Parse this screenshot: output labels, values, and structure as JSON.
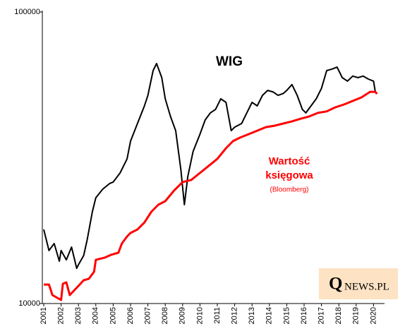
{
  "chart_data": {
    "type": "line",
    "log_y": true,
    "xlim": [
      2001,
      2020.5
    ],
    "xticks": [
      2001,
      2002,
      2003,
      2004,
      2005,
      2006,
      2007,
      2008,
      2009,
      2010,
      2011,
      2012,
      2013,
      2014,
      2015,
      2016,
      2017,
      2018,
      2019,
      2020
    ],
    "ylim": [
      10000,
      100000
    ],
    "yticks": [
      10000,
      100000
    ],
    "series": [
      {
        "name": "WIG",
        "color": "#000000",
        "x": [
          2001.0,
          2001.3,
          2001.6,
          2001.9,
          2002.0,
          2002.3,
          2002.6,
          2002.9,
          2003.0,
          2003.3,
          2003.5,
          2003.8,
          2004.0,
          2004.4,
          2004.8,
          2005.0,
          2005.4,
          2005.8,
          2006.0,
          2006.4,
          2006.8,
          2007.0,
          2007.3,
          2007.5,
          2007.8,
          2008.0,
          2008.3,
          2008.6,
          2008.9,
          2009.1,
          2009.3,
          2009.6,
          2010.0,
          2010.3,
          2010.6,
          2010.9,
          2011.2,
          2011.5,
          2011.8,
          2012.0,
          2012.4,
          2012.7,
          2013.0,
          2013.3,
          2013.6,
          2013.9,
          2014.2,
          2014.5,
          2014.8,
          2015.0,
          2015.3,
          2015.6,
          2015.9,
          2016.1,
          2016.4,
          2016.7,
          2017.0,
          2017.3,
          2017.6,
          2017.9,
          2018.2,
          2018.5,
          2018.8,
          2019.1,
          2019.4,
          2019.7,
          2020.0,
          2020.1
        ],
        "values": [
          17950,
          15200,
          16060,
          13970,
          15200,
          14120,
          15620,
          13210,
          13590,
          14610,
          16520,
          20640,
          23070,
          24670,
          25810,
          26100,
          28050,
          31340,
          36050,
          41430,
          47640,
          51780,
          62950,
          66550,
          59550,
          50360,
          43850,
          39180,
          28840,
          21830,
          27290,
          33190,
          38100,
          42640,
          45080,
          46350,
          50360,
          48980,
          39180,
          40270,
          41430,
          45080,
          48980,
          47640,
          51780,
          53830,
          53220,
          51780,
          52560,
          53830,
          56360,
          51780,
          46350,
          45080,
          47640,
          50360,
          54700,
          62950,
          63680,
          64710,
          59550,
          57940,
          60260,
          59550,
          60260,
          58890,
          57940,
          53220
        ]
      },
      {
        "color": "#ff0000",
        "x": [
          2001.0,
          2001.3,
          2001.5,
          2002.0,
          2002.1,
          2002.3,
          2002.5,
          2003.0,
          2003.3,
          2003.6,
          2003.9,
          2004.0,
          2004.5,
          2004.9,
          2005.3,
          2005.5,
          2005.8,
          2006.0,
          2006.4,
          2006.8,
          2007.2,
          2007.6,
          2008.0,
          2008.5,
          2009.0,
          2009.5,
          2010.0,
          2010.5,
          2011.0,
          2011.5,
          2011.9,
          2012.3,
          2012.8,
          2013.3,
          2013.8,
          2014.3,
          2014.8,
          2015.3,
          2015.8,
          2016.3,
          2016.8,
          2017.3,
          2017.8,
          2018.3,
          2018.8,
          2019.3,
          2019.8,
          2020.1,
          2020.2
        ],
        "values": [
          11620,
          11620,
          10690,
          10280,
          11690,
          11820,
          10690,
          11495,
          12020,
          12160,
          12850,
          14120,
          14360,
          14710,
          14940,
          16060,
          16980,
          17460,
          17950,
          18970,
          20640,
          21830,
          22440,
          24380,
          26100,
          26540,
          28050,
          29650,
          31340,
          34090,
          36050,
          37070,
          38100,
          39180,
          40270,
          40740,
          41430,
          42170,
          43050,
          43850,
          45080,
          45600,
          47100,
          48170,
          49540,
          50930,
          53220,
          53220,
          52380
        ]
      }
    ],
    "annotations": [
      "Wartość",
      "księgowa",
      "(Bloomberg)"
    ],
    "logo": {
      "initial": "Q",
      "rest": "NEWS.PL"
    }
  }
}
